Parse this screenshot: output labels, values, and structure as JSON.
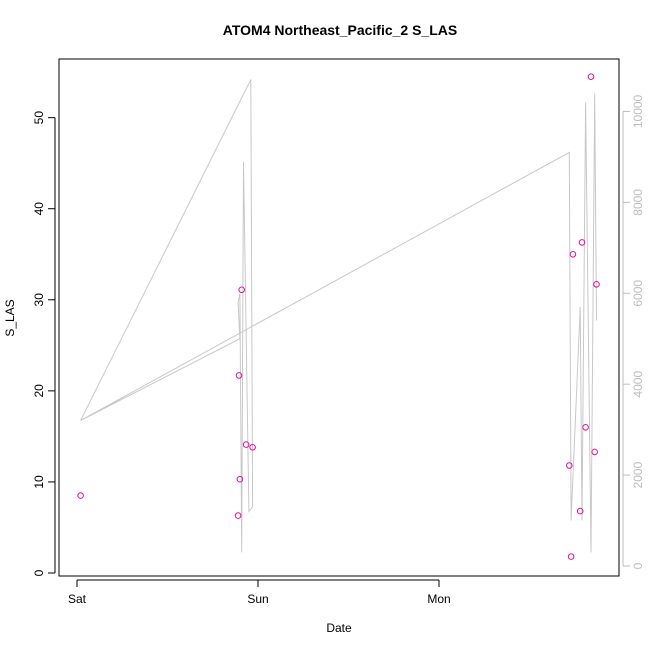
{
  "chart_data": {
    "type": "scatter",
    "title": "ATOM4 Northeast_Pacific_2 S_LAS",
    "xlabel": "Date",
    "ylabel": "S_LAS",
    "x_ticks": [
      "Sat",
      "Sun",
      "Mon"
    ],
    "ylim": [
      0,
      56
    ],
    "y_ticks": [
      0,
      10,
      20,
      30,
      40,
      50
    ],
    "y2lim": [
      0,
      11000
    ],
    "y2_ticks": [
      0,
      2000,
      4000,
      6000,
      8000,
      10000
    ],
    "grid": false,
    "colors": {
      "points": "#e0119a",
      "line": "#c8c8c8",
      "right_axis": "#bdbdbd"
    },
    "points": [
      {
        "x": 0.02,
        "y": 8.5
      },
      {
        "x": 0.89,
        "y": 6.3
      },
      {
        "x": 0.895,
        "y": 21.7
      },
      {
        "x": 0.9,
        "y": 10.3
      },
      {
        "x": 0.91,
        "y": 31.1
      },
      {
        "x": 0.935,
        "y": 14.1
      },
      {
        "x": 0.97,
        "y": 13.8
      },
      {
        "x": 2.72,
        "y": 11.8
      },
      {
        "x": 2.73,
        "y": 1.8
      },
      {
        "x": 2.74,
        "y": 35.0
      },
      {
        "x": 2.78,
        "y": 6.8
      },
      {
        "x": 2.79,
        "y": 36.3
      },
      {
        "x": 2.81,
        "y": 16.0
      },
      {
        "x": 2.84,
        "y": 54.5
      },
      {
        "x": 2.86,
        "y": 13.3
      },
      {
        "x": 2.87,
        "y": 31.7
      }
    ],
    "line_series": [
      {
        "x": 0.02,
        "y": 3200
      },
      {
        "x": 0.96,
        "y": 10700
      },
      {
        "x": 0.97,
        "y": 1300
      },
      {
        "x": 0.95,
        "y": 1200
      },
      {
        "x": 0.92,
        "y": 8900
      },
      {
        "x": 0.91,
        "y": 300
      },
      {
        "x": 0.9,
        "y": 6000
      },
      {
        "x": 0.89,
        "y": 5800
      },
      {
        "x": 0.9,
        "y": 5000
      },
      {
        "x": 0.02,
        "y": 3200
      },
      {
        "x": 2.72,
        "y": 9100
      },
      {
        "x": 2.73,
        "y": 1000
      },
      {
        "x": 2.78,
        "y": 5700
      },
      {
        "x": 2.79,
        "y": 1000
      },
      {
        "x": 2.81,
        "y": 10200
      },
      {
        "x": 2.84,
        "y": 300
      },
      {
        "x": 2.86,
        "y": 10400
      },
      {
        "x": 2.87,
        "y": 5400
      }
    ]
  }
}
